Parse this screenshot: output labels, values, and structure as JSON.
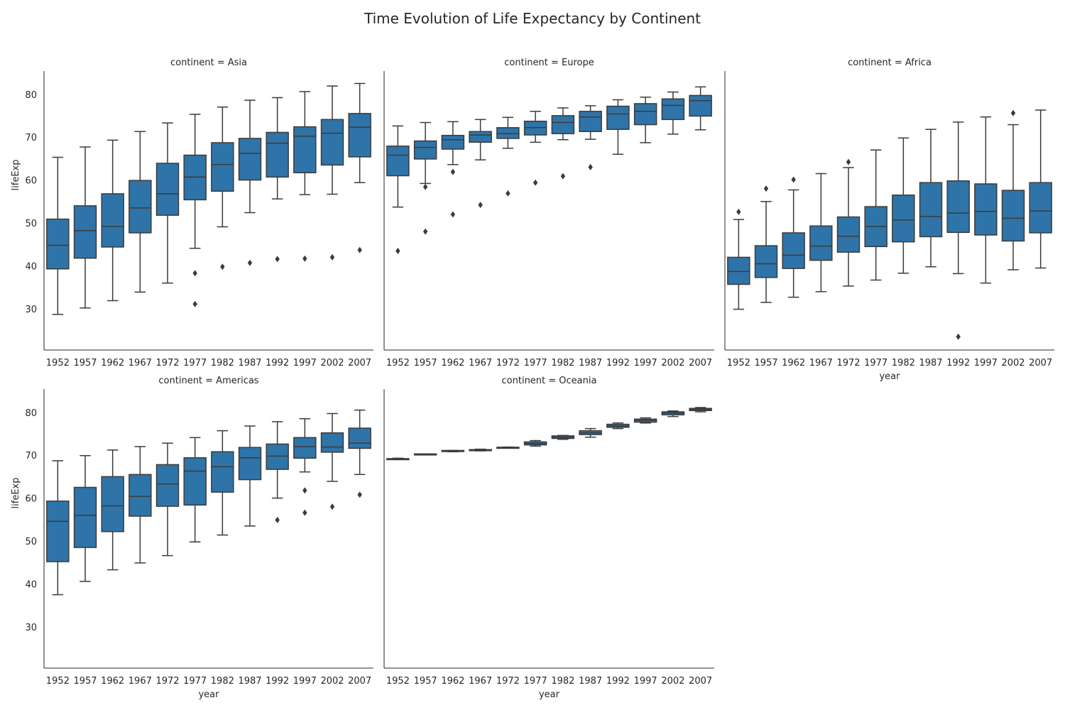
{
  "chart_data": {
    "type": "box",
    "title": "Time Evolution of Life Expectancy by Continent",
    "xlabel": "year",
    "ylabel": "lifeExp",
    "categories": [
      "1952",
      "1957",
      "1962",
      "1967",
      "1972",
      "1977",
      "1982",
      "1987",
      "1992",
      "1997",
      "2002",
      "2007"
    ],
    "ylim": [
      20.5,
      85.5
    ],
    "yticks": [
      30,
      40,
      50,
      60,
      70,
      80
    ],
    "box_color": "#2f74a8",
    "line_color": "#3b3b3b",
    "panels": [
      {
        "label": "continent = Asia",
        "boxes": [
          {
            "whislo": 28.8,
            "q1": 39.4,
            "med": 44.9,
            "q3": 51.0,
            "whishi": 65.4,
            "fliers": []
          },
          {
            "whislo": 30.3,
            "q1": 41.9,
            "med": 48.3,
            "q3": 54.1,
            "whishi": 67.8,
            "fliers": []
          },
          {
            "whislo": 32.0,
            "q1": 44.5,
            "med": 49.3,
            "q3": 56.9,
            "whishi": 69.4,
            "fliers": []
          },
          {
            "whislo": 34.0,
            "q1": 47.8,
            "med": 53.6,
            "q3": 60.0,
            "whishi": 71.4,
            "fliers": []
          },
          {
            "whislo": 36.1,
            "q1": 51.9,
            "med": 56.9,
            "q3": 64.0,
            "whishi": 73.4,
            "fliers": []
          },
          {
            "whislo": 44.2,
            "q1": 55.5,
            "med": 60.8,
            "q3": 65.9,
            "whishi": 75.4,
            "fliers": [
              38.4,
              31.2
            ]
          },
          {
            "whislo": 49.2,
            "q1": 57.5,
            "med": 63.7,
            "q3": 68.8,
            "whishi": 77.1,
            "fliers": [
              39.9
            ]
          },
          {
            "whislo": 52.5,
            "q1": 60.1,
            "med": 66.3,
            "q3": 69.8,
            "whishi": 78.7,
            "fliers": [
              40.8
            ]
          },
          {
            "whislo": 55.7,
            "q1": 60.8,
            "med": 68.7,
            "q3": 71.2,
            "whishi": 79.3,
            "fliers": [
              41.7
            ]
          },
          {
            "whislo": 56.7,
            "q1": 61.8,
            "med": 70.3,
            "q3": 72.5,
            "whishi": 80.7,
            "fliers": [
              41.8
            ]
          },
          {
            "whislo": 56.8,
            "q1": 63.6,
            "med": 71.0,
            "q3": 74.2,
            "whishi": 82.0,
            "fliers": [
              42.1
            ]
          },
          {
            "whislo": 59.5,
            "q1": 65.5,
            "med": 72.4,
            "q3": 75.6,
            "whishi": 82.6,
            "fliers": [
              43.8
            ]
          }
        ]
      },
      {
        "label": "continent = Europe",
        "boxes": [
          {
            "whislo": 53.8,
            "q1": 61.1,
            "med": 65.9,
            "q3": 68.0,
            "whishi": 72.7,
            "fliers": [
              43.6
            ]
          },
          {
            "whislo": 59.3,
            "q1": 65.0,
            "med": 67.7,
            "q3": 69.2,
            "whishi": 73.5,
            "fliers": [
              58.5,
              48.1
            ]
          },
          {
            "whislo": 63.7,
            "q1": 67.3,
            "med": 69.5,
            "q3": 70.5,
            "whishi": 73.7,
            "fliers": [
              62.0,
              52.1
            ]
          },
          {
            "whislo": 64.8,
            "q1": 68.9,
            "med": 70.6,
            "q3": 71.4,
            "whishi": 74.2,
            "fliers": [
              54.3
            ]
          },
          {
            "whislo": 67.5,
            "q1": 69.8,
            "med": 70.9,
            "q3": 72.3,
            "whishi": 74.7,
            "fliers": [
              57.0
            ]
          },
          {
            "whislo": 68.9,
            "q1": 70.6,
            "med": 72.3,
            "q3": 73.8,
            "whishi": 76.1,
            "fliers": [
              59.5
            ]
          },
          {
            "whislo": 69.5,
            "q1": 70.9,
            "med": 73.5,
            "q3": 75.1,
            "whishi": 76.9,
            "fliers": [
              61.0
            ]
          },
          {
            "whislo": 69.6,
            "q1": 71.4,
            "med": 74.8,
            "q3": 76.1,
            "whishi": 77.4,
            "fliers": [
              63.1
            ]
          },
          {
            "whislo": 66.1,
            "q1": 71.9,
            "med": 75.5,
            "q3": 77.3,
            "whishi": 78.8,
            "fliers": []
          },
          {
            "whislo": 68.8,
            "q1": 73.0,
            "med": 76.1,
            "q3": 77.9,
            "whishi": 79.4,
            "fliers": []
          },
          {
            "whislo": 70.8,
            "q1": 74.2,
            "med": 77.5,
            "q3": 79.0,
            "whishi": 80.6,
            "fliers": []
          },
          {
            "whislo": 71.8,
            "q1": 75.0,
            "med": 78.6,
            "q3": 79.8,
            "whishi": 81.8,
            "fliers": []
          }
        ]
      },
      {
        "label": "continent = Africa",
        "boxes": [
          {
            "whislo": 30.0,
            "q1": 35.8,
            "med": 38.8,
            "q3": 42.1,
            "whishi": 50.9,
            "fliers": [
              52.7
            ]
          },
          {
            "whislo": 31.6,
            "q1": 37.4,
            "med": 40.6,
            "q3": 44.8,
            "whishi": 55.1,
            "fliers": [
              58.1
            ]
          },
          {
            "whislo": 32.8,
            "q1": 39.5,
            "med": 42.6,
            "q3": 47.8,
            "whishi": 57.8,
            "fliers": [
              60.2
            ]
          },
          {
            "whislo": 34.1,
            "q1": 41.4,
            "med": 44.7,
            "q3": 49.4,
            "whishi": 61.6,
            "fliers": []
          },
          {
            "whislo": 35.4,
            "q1": 43.3,
            "med": 47.0,
            "q3": 51.5,
            "whishi": 63.0,
            "fliers": [
              64.3
            ]
          },
          {
            "whislo": 36.8,
            "q1": 44.6,
            "med": 49.3,
            "q3": 53.9,
            "whishi": 67.1,
            "fliers": []
          },
          {
            "whislo": 38.4,
            "q1": 45.7,
            "med": 50.8,
            "q3": 56.6,
            "whishi": 69.9,
            "fliers": []
          },
          {
            "whislo": 39.9,
            "q1": 46.9,
            "med": 51.6,
            "q3": 59.5,
            "whishi": 71.9,
            "fliers": []
          },
          {
            "whislo": 38.3,
            "q1": 47.9,
            "med": 52.4,
            "q3": 59.9,
            "whishi": 73.6,
            "fliers": [
              23.6
            ]
          },
          {
            "whislo": 36.1,
            "q1": 47.3,
            "med": 52.8,
            "q3": 59.2,
            "whishi": 74.8,
            "fliers": []
          },
          {
            "whislo": 39.2,
            "q1": 45.9,
            "med": 51.2,
            "q3": 57.7,
            "whishi": 73.0,
            "fliers": [
              75.7
            ]
          },
          {
            "whislo": 39.6,
            "q1": 47.8,
            "med": 52.9,
            "q3": 59.5,
            "whishi": 76.4,
            "fliers": []
          }
        ]
      },
      {
        "label": "continent = Americas",
        "boxes": [
          {
            "whislo": 37.6,
            "q1": 45.3,
            "med": 54.7,
            "q3": 59.4,
            "whishi": 68.8,
            "fliers": []
          },
          {
            "whislo": 40.7,
            "q1": 48.6,
            "med": 56.1,
            "q3": 62.6,
            "whishi": 70.0,
            "fliers": []
          },
          {
            "whislo": 43.4,
            "q1": 52.3,
            "med": 58.3,
            "q3": 65.1,
            "whishi": 71.3,
            "fliers": []
          },
          {
            "whislo": 45.0,
            "q1": 55.9,
            "med": 60.5,
            "q3": 65.6,
            "whishi": 72.1,
            "fliers": []
          },
          {
            "whislo": 46.7,
            "q1": 58.2,
            "med": 63.4,
            "q3": 67.9,
            "whishi": 72.9,
            "fliers": []
          },
          {
            "whislo": 49.9,
            "q1": 58.5,
            "med": 66.4,
            "q3": 69.5,
            "whishi": 74.2,
            "fliers": []
          },
          {
            "whislo": 51.5,
            "q1": 61.5,
            "med": 67.4,
            "q3": 70.9,
            "whishi": 75.8,
            "fliers": []
          },
          {
            "whislo": 53.6,
            "q1": 64.4,
            "med": 69.5,
            "q3": 71.9,
            "whishi": 76.9,
            "fliers": []
          },
          {
            "whislo": 60.1,
            "q1": 66.8,
            "med": 69.9,
            "q3": 72.7,
            "whishi": 77.9,
            "fliers": [
              55.0
            ]
          },
          {
            "whislo": 66.2,
            "q1": 69.4,
            "med": 72.1,
            "q3": 74.2,
            "whishi": 78.6,
            "fliers": [
              61.9,
              56.7
            ]
          },
          {
            "whislo": 64.0,
            "q1": 70.8,
            "med": 72.0,
            "q3": 75.3,
            "whishi": 79.8,
            "fliers": [
              58.1
            ]
          },
          {
            "whislo": 65.6,
            "q1": 71.7,
            "med": 72.9,
            "q3": 76.4,
            "whishi": 80.6,
            "fliers": [
              60.9
            ]
          }
        ]
      },
      {
        "label": "continent = Oceania",
        "boxes": [
          {
            "whislo": 69.1,
            "q1": 69.2,
            "med": 69.25,
            "q3": 69.3,
            "whishi": 69.4,
            "fliers": []
          },
          {
            "whislo": 70.3,
            "q1": 70.3,
            "med": 70.3,
            "q3": 70.4,
            "whishi": 70.4,
            "fliers": []
          },
          {
            "whislo": 70.9,
            "q1": 71.0,
            "med": 71.1,
            "q3": 71.2,
            "whishi": 71.2,
            "fliers": []
          },
          {
            "whislo": 71.1,
            "q1": 71.2,
            "med": 71.3,
            "q3": 71.4,
            "whishi": 71.5,
            "fliers": []
          },
          {
            "whislo": 71.8,
            "q1": 71.85,
            "med": 71.9,
            "q3": 71.95,
            "whishi": 72.0,
            "fliers": []
          },
          {
            "whislo": 72.2,
            "q1": 72.5,
            "med": 72.8,
            "q3": 73.2,
            "whishi": 73.5,
            "fliers": []
          },
          {
            "whislo": 73.8,
            "q1": 74.0,
            "med": 74.3,
            "q3": 74.6,
            "whishi": 74.7,
            "fliers": []
          },
          {
            "whislo": 74.3,
            "q1": 74.9,
            "med": 75.3,
            "q3": 75.8,
            "whishi": 76.3,
            "fliers": []
          },
          {
            "whislo": 76.3,
            "q1": 76.6,
            "med": 76.9,
            "q3": 77.3,
            "whishi": 77.6,
            "fliers": []
          },
          {
            "whislo": 77.6,
            "q1": 77.8,
            "med": 78.2,
            "q3": 78.5,
            "whishi": 78.8,
            "fliers": []
          },
          {
            "whislo": 79.1,
            "q1": 79.5,
            "med": 79.9,
            "q3": 80.2,
            "whishi": 80.4,
            "fliers": []
          },
          {
            "whislo": 80.2,
            "q1": 80.5,
            "med": 80.7,
            "q3": 81.0,
            "whishi": 81.2,
            "fliers": []
          }
        ]
      }
    ]
  }
}
